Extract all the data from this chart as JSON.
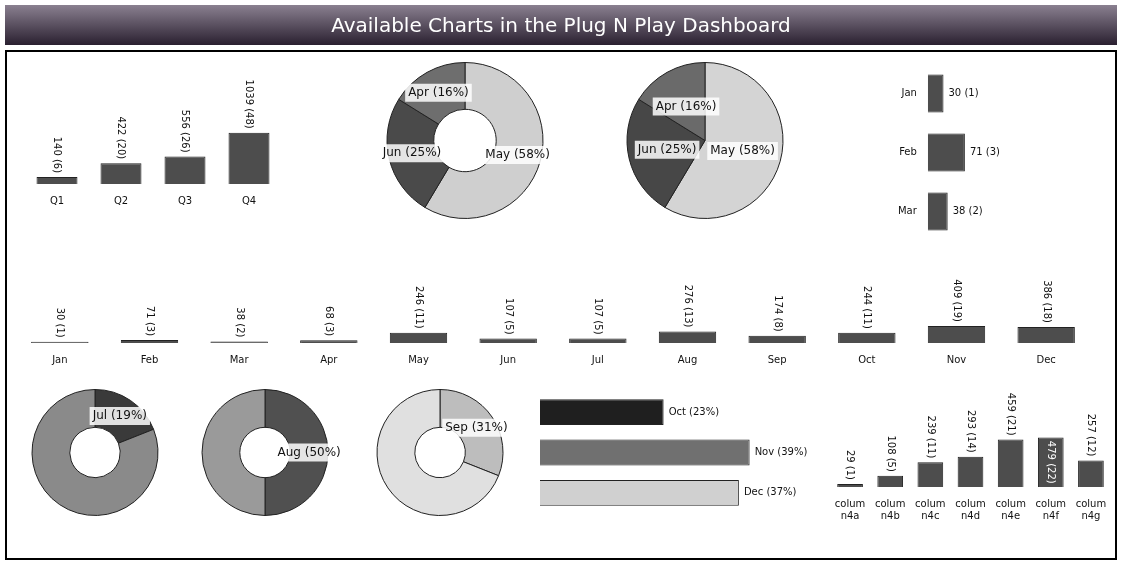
{
  "chart_data": [
    {
      "type": "other",
      "title": "Available Charts in the Plug N Play Dashboard"
    },
    {
      "type": "bar",
      "categories": [
        "Q1",
        "Q2",
        "Q3",
        "Q4"
      ],
      "values": [
        140,
        422,
        556,
        1039
      ],
      "color": "#4d4d4d",
      "value_labels": [
        "140 (6)",
        "422 (20)",
        "556 (26)",
        "1039 (48)"
      ],
      "tick_labels": "x"
    },
    {
      "type": "donut",
      "categories": [
        null,
        null,
        null
      ],
      "values": [
        58,
        25,
        16
      ],
      "colors": [
        "#cfcfcf",
        "#4a4a4a",
        "#6e6e6e"
      ],
      "value_labels": [
        "May (58%)",
        "Jun (25%)",
        "Apr (16%)"
      ]
    },
    {
      "type": "pie",
      "categories": [
        null,
        null,
        null
      ],
      "values": [
        58,
        25,
        16
      ],
      "colors": [
        "#d4d4d4",
        "#474747",
        "#6a6a6a"
      ],
      "value_labels": [
        "May (58%)",
        "Jun (25%)",
        "Apr (16%)"
      ]
    },
    {
      "type": "bar",
      "orientation": "horizontal",
      "categories": [
        "Jan",
        "Feb",
        "Mar"
      ],
      "values": [
        30,
        71,
        38
      ],
      "color": "#4d4d4d",
      "value_labels": [
        "30 (1)",
        "71 (3)",
        "38 (2)"
      ],
      "tick_labels": "y"
    },
    {
      "type": "bar",
      "categories": [
        "Jan",
        "Feb",
        "Mar",
        "Apr",
        "May",
        "Jun",
        "Jul",
        "Aug",
        "Sep",
        "Oct",
        "Nov",
        "Dec"
      ],
      "values": [
        30,
        71,
        38,
        68,
        246,
        107,
        107,
        276,
        174,
        244,
        409,
        386
      ],
      "color": "#4d4d4d",
      "value_labels": [
        "30 (1)",
        "71 (3)",
        "38 (2)",
        "68 (3)",
        "246 (11)",
        "107 (5)",
        "107 (5)",
        "276 (13)",
        "174 (8)",
        "244 (11)",
        "409 (19)",
        "386 (18)"
      ],
      "tick_labels": "x"
    },
    {
      "type": "donut",
      "categories": [
        null,
        null
      ],
      "values": [
        19,
        81
      ],
      "colors": [
        "#3a3a3a",
        "#8a8a8a"
      ],
      "value_labels": [
        "Jul (19%)",
        null
      ]
    },
    {
      "type": "donut",
      "categories": [
        null,
        null
      ],
      "values": [
        50,
        50
      ],
      "colors": [
        "#505050",
        "#9a9a9a"
      ],
      "value_labels": [
        "Aug (50%)",
        null
      ]
    },
    {
      "type": "donut",
      "categories": [
        null,
        null
      ],
      "values": [
        31,
        69
      ],
      "colors": [
        "#bdbdbd",
        "#e0e0e0"
      ],
      "value_labels": [
        "Sep (31%)",
        null
      ]
    },
    {
      "type": "bar",
      "orientation": "horizontal",
      "categories": [
        null,
        null,
        null
      ],
      "values": [
        23,
        39,
        37
      ],
      "colors": [
        "#1f1f1f",
        "#707070",
        "#d0d0d0"
      ],
      "value_labels": [
        "Oct (23%)",
        "Nov (39%)",
        "Dec (37%)"
      ],
      "tick_labels": false
    },
    {
      "type": "bar",
      "categories": [
        "colum n4a",
        "colum n4b",
        "colum n4c",
        "colum n4d",
        "colum n4e",
        "colum n4f",
        "colum n4g"
      ],
      "values": [
        29,
        108,
        239,
        293,
        459,
        479,
        257
      ],
      "color": "#4d4d4d",
      "value_labels": [
        "29 (1)",
        "108 (5)",
        "239 (11)",
        "293 (14)",
        "459 (21)",
        "479 (22)",
        "257 (12)"
      ],
      "tick_labels": "x"
    }
  ]
}
